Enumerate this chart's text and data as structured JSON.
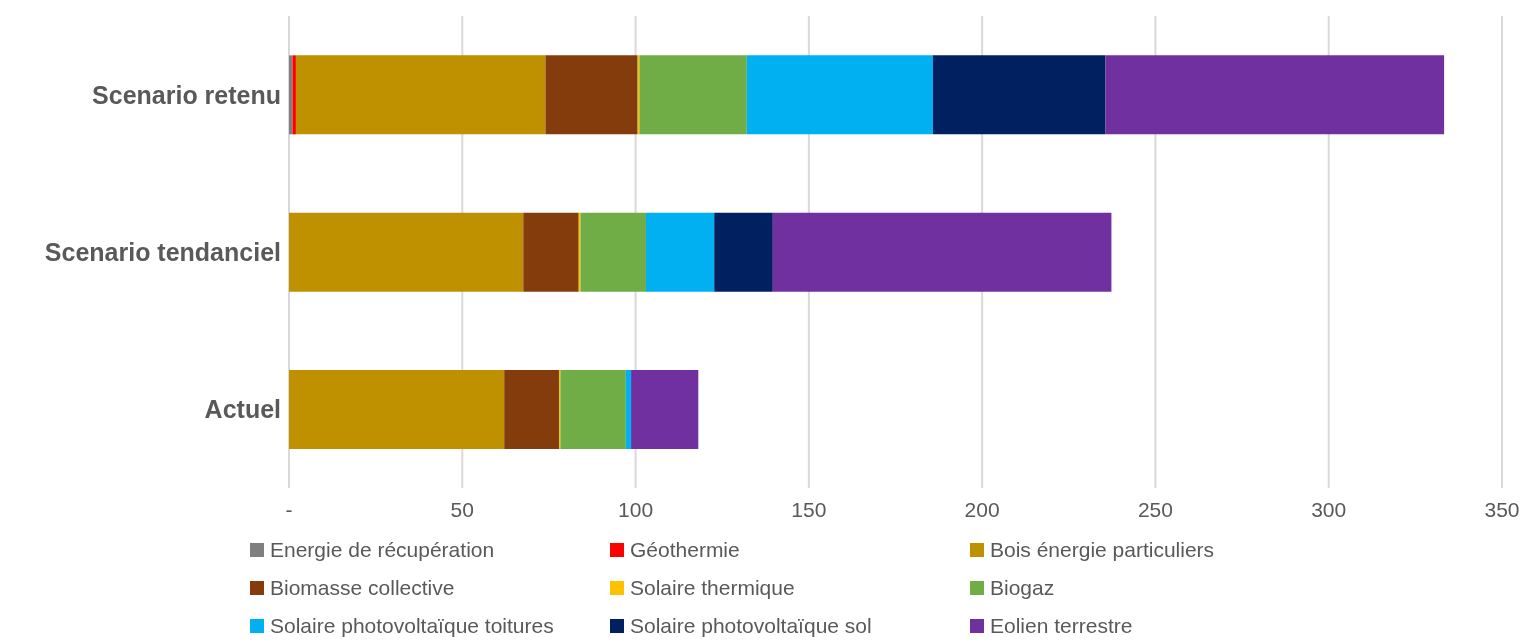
{
  "chart_data": {
    "type": "bar",
    "orientation": "horizontal",
    "stacked": true,
    "categories": [
      "Scenario retenu",
      "Scenario tendanciel",
      "Actuel"
    ],
    "series": [
      {
        "name": "Energie de récupération",
        "color": "#7f7f7f",
        "values": [
          1,
          0,
          0
        ]
      },
      {
        "name": "Géothermie",
        "color": "#ff0000",
        "values": [
          1,
          0,
          0
        ]
      },
      {
        "name": "Bois énergie particuliers",
        "color": "#bf9000",
        "values": [
          72,
          67.6,
          62.1
        ]
      },
      {
        "name": "Biomasse collective",
        "color": "#843c0c",
        "values": [
          26.6,
          16,
          15.8
        ]
      },
      {
        "name": "Solaire thermique",
        "color": "#ffc000",
        "values": [
          0.5,
          0.5,
          0.4
        ]
      },
      {
        "name": "Biogaz",
        "color": "#70ad47",
        "values": [
          31,
          18.9,
          18.9
        ]
      },
      {
        "name": "Solaire photovoltaïque toitures",
        "color": "#00b0f0",
        "values": [
          53.7,
          19.7,
          1.5
        ]
      },
      {
        "name": "Solaire photovoltaïque sol",
        "color": "#002060",
        "values": [
          49.8,
          16.9,
          0
        ]
      },
      {
        "name": "Eolien terrestre",
        "color": "#7030a0",
        "values": [
          97.7,
          97.7,
          19.4
        ]
      }
    ],
    "xlim": [
      0,
      350
    ],
    "xticks": [
      {
        "value": 0,
        "label": "-"
      },
      50,
      100,
      150,
      200,
      250,
      300,
      350
    ],
    "grid": "x",
    "legend": "bottom"
  }
}
